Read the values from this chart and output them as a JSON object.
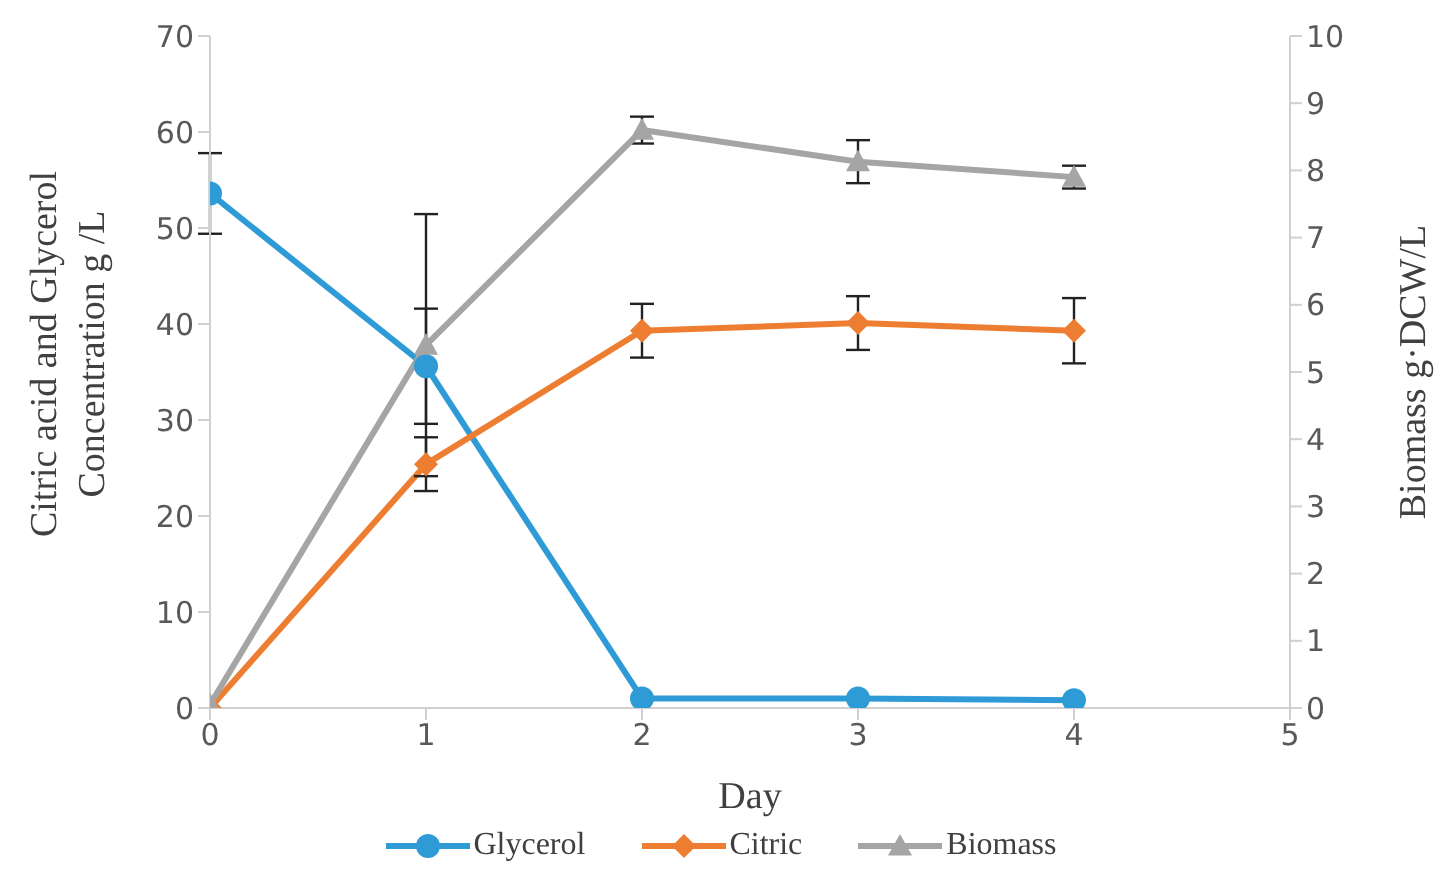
{
  "chart_data": {
    "type": "line",
    "xlabel": "Day",
    "ylabel": "Citric acid and Glycerol Concentration g /L",
    "y2label": "Biomass g·DCW/L",
    "x": [
      0,
      1,
      2,
      3,
      4
    ],
    "series": [
      {
        "name": "Glycerol",
        "color": "#2e9bd6",
        "marker": "circle",
        "values": [
          53.6,
          35.6,
          1.0,
          1.0,
          0.8
        ],
        "errors": [
          4.2,
          6,
          null,
          null,
          null
        ]
      },
      {
        "name": "Citric",
        "color": "#ed7d31",
        "marker": "diamond",
        "values": [
          0,
          25.4,
          39.3,
          40.1,
          39.3
        ],
        "errors": [
          null,
          2.8,
          2.8,
          2.8,
          3.4
        ]
      },
      {
        "name": "Biomass",
        "color": "#a5a5a5",
        "marker": "triangle",
        "axis": "y2",
        "values": [
          0.05,
          5.4,
          8.6,
          8.13,
          7.9
        ],
        "errors": [
          null,
          1.95,
          0.2,
          0.32,
          0.17
        ]
      }
    ],
    "xlim": [
      0,
      5
    ],
    "xticks": [
      0,
      1,
      2,
      3,
      4,
      5
    ],
    "ylim": [
      0,
      70
    ],
    "yticks": [
      0,
      10,
      20,
      30,
      40,
      50,
      60,
      70
    ],
    "y2lim": [
      0,
      10
    ],
    "y2ticks": [
      0,
      1,
      2,
      3,
      4,
      5,
      6,
      7,
      8,
      9,
      10
    ],
    "grid": false,
    "legend": "bottom"
  }
}
